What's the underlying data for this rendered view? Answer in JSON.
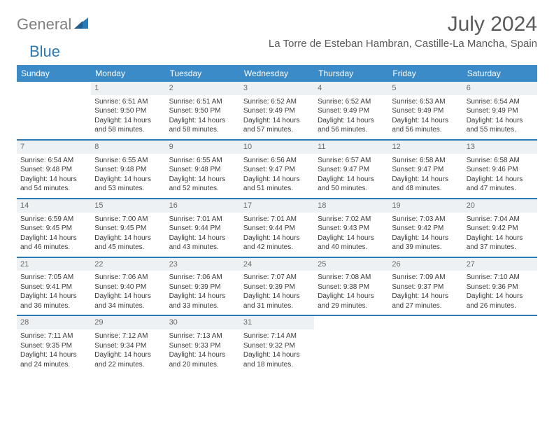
{
  "brand": {
    "part1": "General",
    "part2": "Blue"
  },
  "header": {
    "month": "July 2024",
    "location": "La Torre de Esteban Hambran, Castille-La Mancha, Spain"
  },
  "colors": {
    "header_bg": "#3b8bc9",
    "row_divider": "#2a7ab8",
    "daynum_bg": "#eef1f3",
    "text": "#3a3a3a",
    "muted": "#808080"
  },
  "daysOfWeek": [
    "Sunday",
    "Monday",
    "Tuesday",
    "Wednesday",
    "Thursday",
    "Friday",
    "Saturday"
  ],
  "firstDayIndex": 1,
  "numDays": 31,
  "cells": {
    "1": {
      "sunrise": "6:51 AM",
      "sunset": "9:50 PM",
      "daylight": "14 hours and 58 minutes."
    },
    "2": {
      "sunrise": "6:51 AM",
      "sunset": "9:50 PM",
      "daylight": "14 hours and 58 minutes."
    },
    "3": {
      "sunrise": "6:52 AM",
      "sunset": "9:49 PM",
      "daylight": "14 hours and 57 minutes."
    },
    "4": {
      "sunrise": "6:52 AM",
      "sunset": "9:49 PM",
      "daylight": "14 hours and 56 minutes."
    },
    "5": {
      "sunrise": "6:53 AM",
      "sunset": "9:49 PM",
      "daylight": "14 hours and 56 minutes."
    },
    "6": {
      "sunrise": "6:54 AM",
      "sunset": "9:49 PM",
      "daylight": "14 hours and 55 minutes."
    },
    "7": {
      "sunrise": "6:54 AM",
      "sunset": "9:48 PM",
      "daylight": "14 hours and 54 minutes."
    },
    "8": {
      "sunrise": "6:55 AM",
      "sunset": "9:48 PM",
      "daylight": "14 hours and 53 minutes."
    },
    "9": {
      "sunrise": "6:55 AM",
      "sunset": "9:48 PM",
      "daylight": "14 hours and 52 minutes."
    },
    "10": {
      "sunrise": "6:56 AM",
      "sunset": "9:47 PM",
      "daylight": "14 hours and 51 minutes."
    },
    "11": {
      "sunrise": "6:57 AM",
      "sunset": "9:47 PM",
      "daylight": "14 hours and 50 minutes."
    },
    "12": {
      "sunrise": "6:58 AM",
      "sunset": "9:47 PM",
      "daylight": "14 hours and 48 minutes."
    },
    "13": {
      "sunrise": "6:58 AM",
      "sunset": "9:46 PM",
      "daylight": "14 hours and 47 minutes."
    },
    "14": {
      "sunrise": "6:59 AM",
      "sunset": "9:45 PM",
      "daylight": "14 hours and 46 minutes."
    },
    "15": {
      "sunrise": "7:00 AM",
      "sunset": "9:45 PM",
      "daylight": "14 hours and 45 minutes."
    },
    "16": {
      "sunrise": "7:01 AM",
      "sunset": "9:44 PM",
      "daylight": "14 hours and 43 minutes."
    },
    "17": {
      "sunrise": "7:01 AM",
      "sunset": "9:44 PM",
      "daylight": "14 hours and 42 minutes."
    },
    "18": {
      "sunrise": "7:02 AM",
      "sunset": "9:43 PM",
      "daylight": "14 hours and 40 minutes."
    },
    "19": {
      "sunrise": "7:03 AM",
      "sunset": "9:42 PM",
      "daylight": "14 hours and 39 minutes."
    },
    "20": {
      "sunrise": "7:04 AM",
      "sunset": "9:42 PM",
      "daylight": "14 hours and 37 minutes."
    },
    "21": {
      "sunrise": "7:05 AM",
      "sunset": "9:41 PM",
      "daylight": "14 hours and 36 minutes."
    },
    "22": {
      "sunrise": "7:06 AM",
      "sunset": "9:40 PM",
      "daylight": "14 hours and 34 minutes."
    },
    "23": {
      "sunrise": "7:06 AM",
      "sunset": "9:39 PM",
      "daylight": "14 hours and 33 minutes."
    },
    "24": {
      "sunrise": "7:07 AM",
      "sunset": "9:39 PM",
      "daylight": "14 hours and 31 minutes."
    },
    "25": {
      "sunrise": "7:08 AM",
      "sunset": "9:38 PM",
      "daylight": "14 hours and 29 minutes."
    },
    "26": {
      "sunrise": "7:09 AM",
      "sunset": "9:37 PM",
      "daylight": "14 hours and 27 minutes."
    },
    "27": {
      "sunrise": "7:10 AM",
      "sunset": "9:36 PM",
      "daylight": "14 hours and 26 minutes."
    },
    "28": {
      "sunrise": "7:11 AM",
      "sunset": "9:35 PM",
      "daylight": "14 hours and 24 minutes."
    },
    "29": {
      "sunrise": "7:12 AM",
      "sunset": "9:34 PM",
      "daylight": "14 hours and 22 minutes."
    },
    "30": {
      "sunrise": "7:13 AM",
      "sunset": "9:33 PM",
      "daylight": "14 hours and 20 minutes."
    },
    "31": {
      "sunrise": "7:14 AM",
      "sunset": "9:32 PM",
      "daylight": "14 hours and 18 minutes."
    }
  },
  "labels": {
    "sunrise": "Sunrise:",
    "sunset": "Sunset:",
    "daylight": "Daylight:"
  }
}
